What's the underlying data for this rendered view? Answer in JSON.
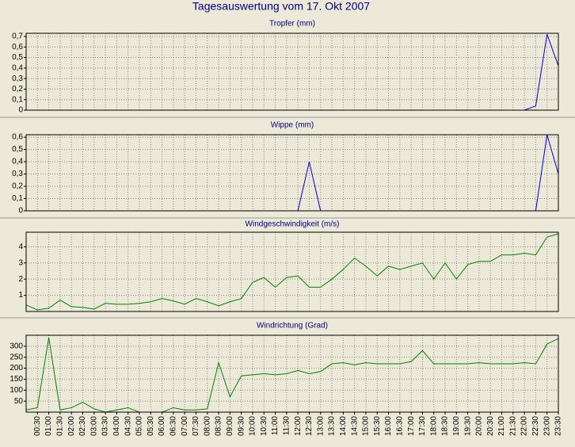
{
  "title": "Tagesauswertung vom 17. Okt 2007",
  "chart_data": [
    {
      "type": "line",
      "title": "Tropfer (mm)",
      "color": "#0000cc",
      "grid": true,
      "ylim": [
        0,
        0.73
      ],
      "yticks": [
        0,
        {
          "value": 0.1,
          "label": "0,1"
        },
        {
          "value": 0.2,
          "label": "0,2"
        },
        {
          "value": 0.3,
          "label": "0,3"
        },
        {
          "value": 0.4,
          "label": "0,4"
        },
        {
          "value": 0.5,
          "label": "0,5"
        },
        {
          "value": 0.6,
          "label": "0,6"
        },
        {
          "value": 0.7,
          "label": "0,7"
        }
      ],
      "values": [
        0,
        0,
        0,
        0,
        0,
        0,
        0,
        0,
        0,
        0,
        0,
        0,
        0,
        0,
        0,
        0,
        0,
        0,
        0,
        0,
        0,
        0,
        0,
        0,
        0,
        0,
        0,
        0,
        0,
        0,
        0,
        0,
        0,
        0,
        0,
        0,
        0,
        0,
        0,
        0,
        0,
        0,
        0,
        0,
        0,
        0.04,
        0.72,
        0.42
      ]
    },
    {
      "type": "line",
      "title": "Wippe (mm)",
      "color": "#0000cc",
      "grid": true,
      "ylim": [
        0,
        0.62
      ],
      "yticks": [
        0,
        {
          "value": 0.1,
          "label": "0,1"
        },
        {
          "value": 0.2,
          "label": "0,2"
        },
        {
          "value": 0.3,
          "label": "0,3"
        },
        {
          "value": 0.4,
          "label": "0,4"
        },
        {
          "value": 0.5,
          "label": "0,5"
        },
        {
          "value": 0.6,
          "label": "0,6"
        }
      ],
      "values": [
        0,
        0,
        0,
        0,
        0,
        0,
        0,
        0,
        0,
        0,
        0,
        0,
        0,
        0,
        0,
        0,
        0,
        0,
        0,
        0,
        0,
        0,
        0,
        0,
        0,
        0.4,
        0,
        0,
        0,
        0,
        0,
        0,
        0,
        0,
        0,
        0,
        0,
        0,
        0,
        0,
        0,
        0,
        0,
        0,
        0,
        0,
        0.62,
        0.3
      ]
    },
    {
      "type": "line",
      "title": "Windgeschwindigkeit (m/s)",
      "color": "#008000",
      "grid": true,
      "ylim": [
        0,
        4.9
      ],
      "yticks": [
        1,
        2,
        3,
        4
      ],
      "values": [
        0.4,
        0.1,
        0.2,
        0.7,
        0.3,
        0.25,
        0.15,
        0.5,
        0.45,
        0.45,
        0.5,
        0.6,
        0.8,
        0.65,
        0.45,
        0.8,
        0.6,
        0.35,
        0.6,
        0.8,
        1.8,
        2.1,
        1.5,
        2.1,
        2.2,
        1.5,
        1.5,
        2.0,
        2.6,
        3.3,
        2.8,
        2.2,
        2.8,
        2.6,
        2.8,
        3.0,
        2.0,
        3.0,
        2.0,
        2.9,
        3.1,
        3.1,
        3.5,
        3.5,
        3.6,
        3.5,
        4.6,
        4.8
      ]
    },
    {
      "type": "line",
      "title": "Windrichtung (Grad)",
      "color": "#008000",
      "grid": true,
      "ylim": [
        0,
        350
      ],
      "yticks": [
        50,
        100,
        150,
        200,
        250,
        300
      ],
      "categories": [
        null,
        "00:30",
        "01:00",
        "01:30",
        "02:00",
        "02:30",
        "03:00",
        "03:30",
        "04:00",
        "04:30",
        "05:00",
        "05:30",
        "06:00",
        "06:30",
        "07:00",
        "07:30",
        "08:00",
        "08:30",
        "09:00",
        "09:30",
        "10:00",
        "10:30",
        "11:00",
        "11:30",
        "12:00",
        "12:30",
        "13:00",
        "13:30",
        "14:00",
        "14:30",
        "15:00",
        "15:30",
        "16:00",
        "16:30",
        "17:00",
        "17:30",
        "18:00",
        "18:30",
        "19:00",
        "19:30",
        "20:00",
        "20:30",
        "21:00",
        "21:30",
        "22:00",
        "22:30",
        "23:00",
        "23:30"
      ],
      "values": [
        10,
        20,
        340,
        10,
        20,
        45,
        15,
        0,
        10,
        20,
        0,
        0,
        0,
        20,
        10,
        10,
        15,
        225,
        70,
        165,
        170,
        175,
        170,
        175,
        190,
        175,
        185,
        220,
        225,
        215,
        225,
        220,
        220,
        220,
        230,
        280,
        220,
        220,
        220,
        220,
        225,
        220,
        220,
        220,
        225,
        220,
        310,
        335
      ]
    }
  ]
}
